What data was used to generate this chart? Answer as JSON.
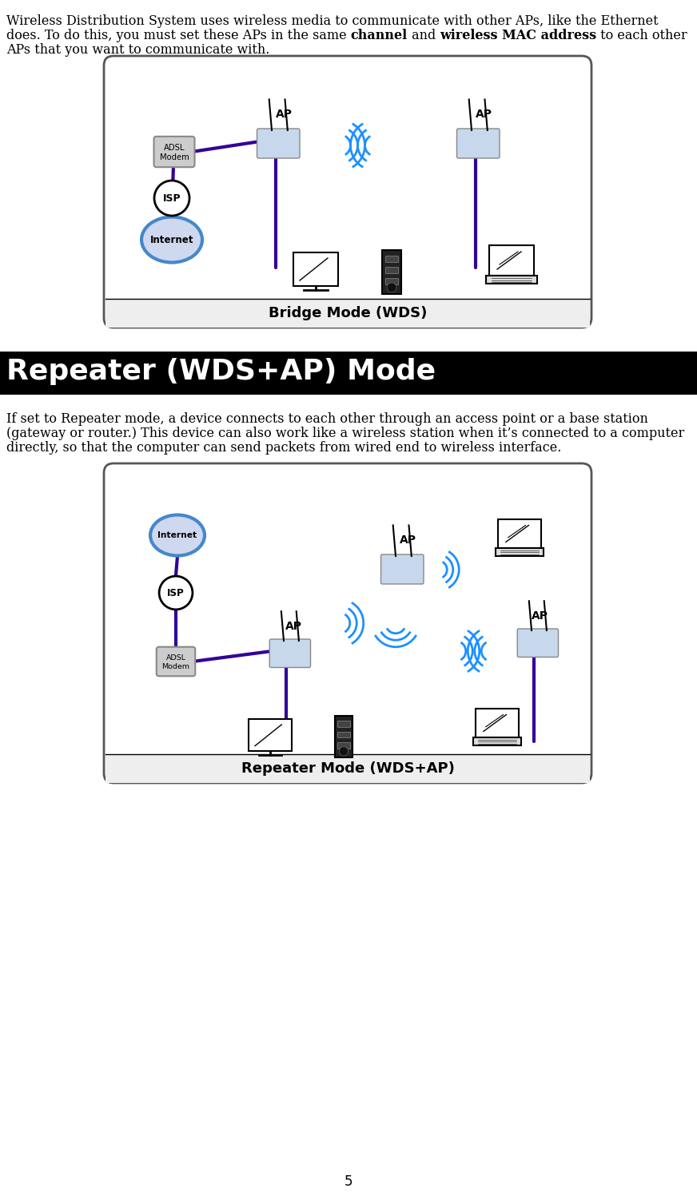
{
  "page_bg": "#ffffff",
  "page_number": "5",
  "intro_text_line1": "Wireless Distribution System uses wireless media to communicate with other APs, like the Ethernet",
  "intro_text_line2a": "does. To do this, you must set these APs in the same ",
  "intro_bold1": "channel",
  "intro_text_line2b": " and ",
  "intro_bold2": "wireless MAC address",
  "intro_text_line2c": " to each other",
  "intro_text_line3": "APs that you want to communicate with.",
  "bridge_caption": "Bridge Mode (WDS)",
  "section_header": "Repeater (WDS+AP) Mode",
  "section_bg": "#000000",
  "section_fg": "#ffffff",
  "repeater_text_line1": "If set to Repeater mode, a device connects to each other through an access point or a base station",
  "repeater_text_line2": "(gateway or router.) This device can also work like a wireless station when it’s connected to a computer",
  "repeater_text_line3": "directly, so that the computer can send packets from wired end to wireless interface.",
  "repeater_caption": "Repeater Mode (WDS+AP)"
}
